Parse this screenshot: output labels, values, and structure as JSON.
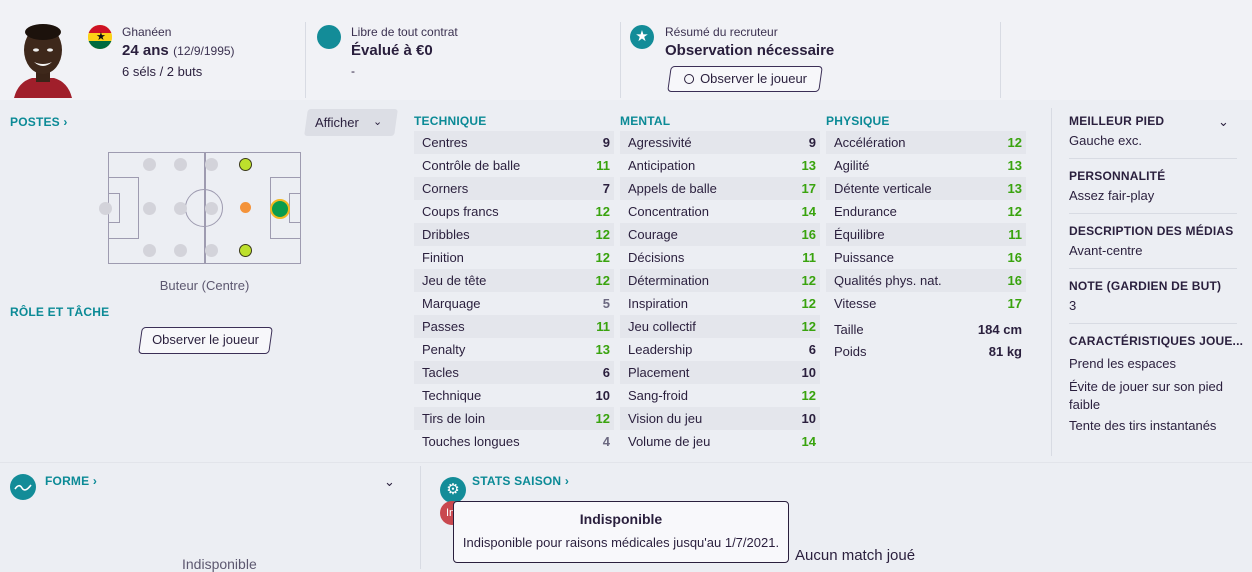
{
  "header": {
    "nationality": "Ghanéen",
    "age": "24 ans",
    "birthdate": "(12/9/1995)",
    "caps": "6 séls / 2 buts",
    "contract": "Libre de tout contrat",
    "value": "Évalué à €0",
    "value_sub": "-",
    "scout_label": "Résumé du recruteur",
    "scout_value": "Observation nécessaire",
    "scout_button": "Observer le joueur"
  },
  "positions": {
    "title": "POSTES",
    "afficher": "Afficher",
    "role_text": "Buteur (Centre)",
    "role_title": "RÔLE ET TÂCHE",
    "observe_button": "Observer le joueur"
  },
  "technique": {
    "title": "TECHNIQUE",
    "rows": [
      {
        "name": "Centres",
        "value": "9"
      },
      {
        "name": "Contrôle de balle",
        "value": "11"
      },
      {
        "name": "Corners",
        "value": "7"
      },
      {
        "name": "Coups francs",
        "value": "12"
      },
      {
        "name": "Dribbles",
        "value": "12"
      },
      {
        "name": "Finition",
        "value": "12"
      },
      {
        "name": "Jeu de tête",
        "value": "12"
      },
      {
        "name": "Marquage",
        "value": "5"
      },
      {
        "name": "Passes",
        "value": "11"
      },
      {
        "name": "Penalty",
        "value": "13"
      },
      {
        "name": "Tacles",
        "value": "6"
      },
      {
        "name": "Technique",
        "value": "10"
      },
      {
        "name": "Tirs de loin",
        "value": "12"
      },
      {
        "name": "Touches longues",
        "value": "4"
      }
    ]
  },
  "mental": {
    "title": "MENTAL",
    "rows": [
      {
        "name": "Agressivité",
        "value": "9"
      },
      {
        "name": "Anticipation",
        "value": "13"
      },
      {
        "name": "Appels de balle",
        "value": "17"
      },
      {
        "name": "Concentration",
        "value": "14"
      },
      {
        "name": "Courage",
        "value": "16"
      },
      {
        "name": "Décisions",
        "value": "11"
      },
      {
        "name": "Détermination",
        "value": "12"
      },
      {
        "name": "Inspiration",
        "value": "12"
      },
      {
        "name": "Jeu collectif",
        "value": "12"
      },
      {
        "name": "Leadership",
        "value": "6"
      },
      {
        "name": "Placement",
        "value": "10"
      },
      {
        "name": "Sang-froid",
        "value": "12"
      },
      {
        "name": "Vision du jeu",
        "value": "10"
      },
      {
        "name": "Volume de jeu",
        "value": "14"
      }
    ]
  },
  "physique": {
    "title": "PHYSIQUE",
    "rows": [
      {
        "name": "Accélération",
        "value": "12"
      },
      {
        "name": "Agilité",
        "value": "13"
      },
      {
        "name": "Détente verticale",
        "value": "13"
      },
      {
        "name": "Endurance",
        "value": "12"
      },
      {
        "name": "Équilibre",
        "value": "11"
      },
      {
        "name": "Puissance",
        "value": "16"
      },
      {
        "name": "Qualités phys. nat.",
        "value": "16"
      },
      {
        "name": "Vitesse",
        "value": "17"
      }
    ],
    "height_label": "Taille",
    "height": "184 cm",
    "weight_label": "Poids",
    "weight": "81 kg"
  },
  "side": {
    "foot_h": "MEILLEUR PIED",
    "foot_v": "Gauche exc.",
    "pers_h": "PERSONNALITÉ",
    "pers_v": "Assez fair-play",
    "media_h": "DESCRIPTION DES MÉDIAS",
    "media_v": "Avant-centre",
    "gk_h": "NOTE (GARDIEN DE BUT)",
    "gk_v": "3",
    "traits_h": "CARACTÉRISTIQUES JOUE...",
    "traits": [
      "Prend les espaces",
      "Évite de jouer sur son pied faible",
      "Tente des tirs instantanés"
    ]
  },
  "bottom": {
    "form_title": "FORME",
    "unavailable": "Indisponible",
    "stats_title": "STATS SAISON",
    "tooltip_title": "Indisponible",
    "tooltip_text": "Indisponible pour raisons médicales jusqu'au 1/7/2021.",
    "no_match": "Aucun match joué",
    "badge_text": "In"
  },
  "colors": {
    "teal": "#138c98",
    "green": "#39a30e",
    "dark": "#2a1f3d"
  }
}
